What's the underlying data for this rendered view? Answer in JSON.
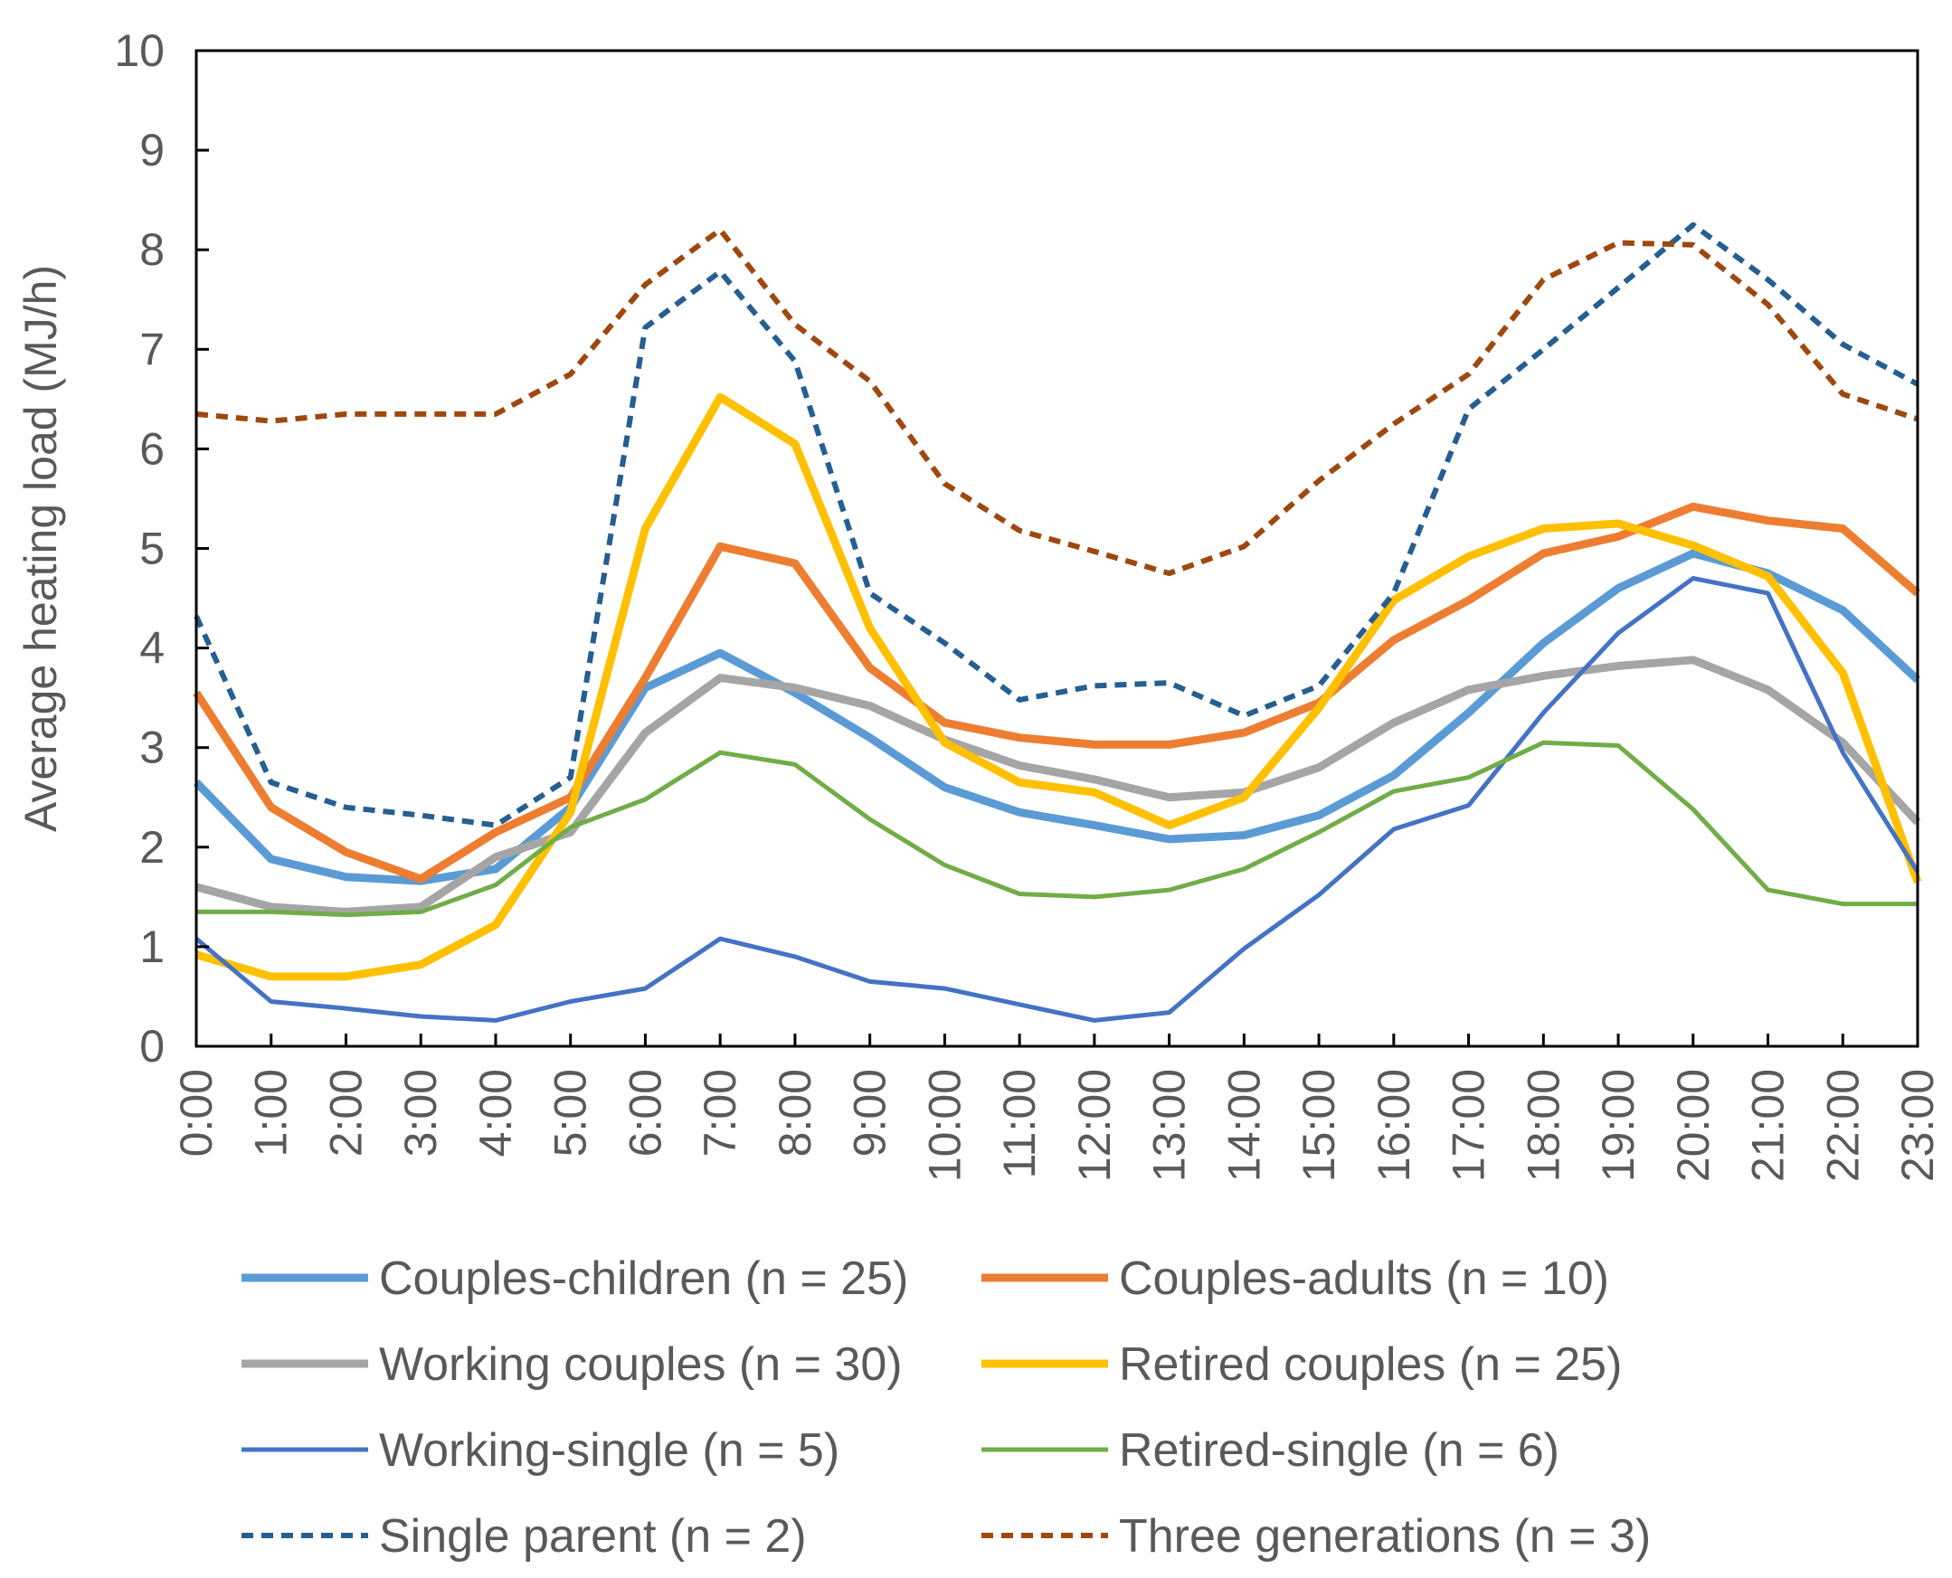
{
  "chart_data": {
    "type": "line",
    "title": "",
    "xlabel": "",
    "ylabel": "Average heating load (MJ/h)",
    "ylim": [
      0,
      10
    ],
    "yticks": [
      0,
      1,
      2,
      3,
      4,
      5,
      6,
      7,
      8,
      9,
      10
    ],
    "grid": false,
    "legend_position": "bottom",
    "categories": [
      "0:00",
      "1:00",
      "2:00",
      "3:00",
      "4:00",
      "5:00",
      "6:00",
      "7:00",
      "8:00",
      "9:00",
      "10:00",
      "11:00",
      "12:00",
      "13:00",
      "14:00",
      "15:00",
      "16:00",
      "17:00",
      "18:00",
      "19:00",
      "20:00",
      "21:00",
      "22:00",
      "23:00"
    ],
    "series": [
      {
        "name": "Couples-children (n = 25)",
        "color": "#5b9bd5",
        "dash": "solid",
        "weight": "thick",
        "values": [
          2.65,
          1.88,
          1.7,
          1.66,
          1.78,
          2.4,
          3.6,
          3.95,
          3.55,
          3.1,
          2.6,
          2.35,
          2.22,
          2.08,
          2.12,
          2.32,
          2.72,
          3.35,
          4.05,
          4.6,
          4.95,
          4.75,
          4.38,
          3.68
        ]
      },
      {
        "name": "Couples-adults (n = 10)",
        "color": "#ed7d31",
        "dash": "solid",
        "weight": "thick",
        "values": [
          3.55,
          2.4,
          1.95,
          1.68,
          2.15,
          2.5,
          3.7,
          5.02,
          4.85,
          3.8,
          3.25,
          3.1,
          3.03,
          3.03,
          3.15,
          3.45,
          4.08,
          4.48,
          4.95,
          5.12,
          5.42,
          5.28,
          5.2,
          4.55
        ]
      },
      {
        "name": "Working couples (n = 30)",
        "color": "#a5a5a5",
        "dash": "solid",
        "weight": "thick",
        "values": [
          1.6,
          1.4,
          1.35,
          1.4,
          1.9,
          2.15,
          3.15,
          3.7,
          3.6,
          3.42,
          3.08,
          2.82,
          2.68,
          2.5,
          2.55,
          2.8,
          3.25,
          3.58,
          3.72,
          3.82,
          3.88,
          3.58,
          3.05,
          2.25
        ]
      },
      {
        "name": "Retired couples (n = 25)",
        "color": "#ffc000",
        "dash": "solid",
        "weight": "thick",
        "values": [
          0.92,
          0.7,
          0.7,
          0.82,
          1.22,
          2.35,
          5.2,
          6.52,
          6.05,
          4.2,
          3.05,
          2.65,
          2.55,
          2.22,
          2.5,
          3.4,
          4.48,
          4.92,
          5.2,
          5.25,
          5.03,
          4.72,
          3.75,
          1.65
        ]
      },
      {
        "name": "Working-single (n = 5)",
        "color": "#4472c4",
        "dash": "solid",
        "weight": "thin",
        "values": [
          1.08,
          0.45,
          0.38,
          0.3,
          0.26,
          0.45,
          0.58,
          1.08,
          0.9,
          0.65,
          0.58,
          0.42,
          0.26,
          0.34,
          0.98,
          1.52,
          2.18,
          2.42,
          3.35,
          4.15,
          4.7,
          4.55,
          2.95,
          1.75
        ]
      },
      {
        "name": "Retired-single (n = 6)",
        "color": "#70ad47",
        "dash": "solid",
        "weight": "thin",
        "values": [
          1.35,
          1.35,
          1.32,
          1.35,
          1.62,
          2.2,
          2.48,
          2.95,
          2.83,
          2.28,
          1.82,
          1.53,
          1.5,
          1.57,
          1.78,
          2.15,
          2.56,
          2.7,
          3.05,
          3.02,
          2.38,
          1.57,
          1.43,
          1.43
        ]
      },
      {
        "name": "Single parent (n = 2)",
        "color": "#255e91",
        "dash": "dashed",
        "weight": "medium",
        "values": [
          4.32,
          2.65,
          2.4,
          2.32,
          2.22,
          2.7,
          7.22,
          7.78,
          6.88,
          4.55,
          4.05,
          3.48,
          3.62,
          3.65,
          3.32,
          3.62,
          4.55,
          6.4,
          7.0,
          7.62,
          8.25,
          7.7,
          7.05,
          6.65
        ]
      },
      {
        "name": "Three generations (n = 3)",
        "color": "#9e480e",
        "dash": "dashed",
        "weight": "medium",
        "values": [
          6.35,
          6.28,
          6.35,
          6.35,
          6.35,
          6.75,
          7.65,
          8.2,
          7.25,
          6.68,
          5.65,
          5.18,
          4.97,
          4.75,
          5.02,
          5.68,
          6.25,
          6.75,
          7.7,
          8.07,
          8.05,
          7.45,
          6.55,
          6.3
        ]
      }
    ]
  }
}
